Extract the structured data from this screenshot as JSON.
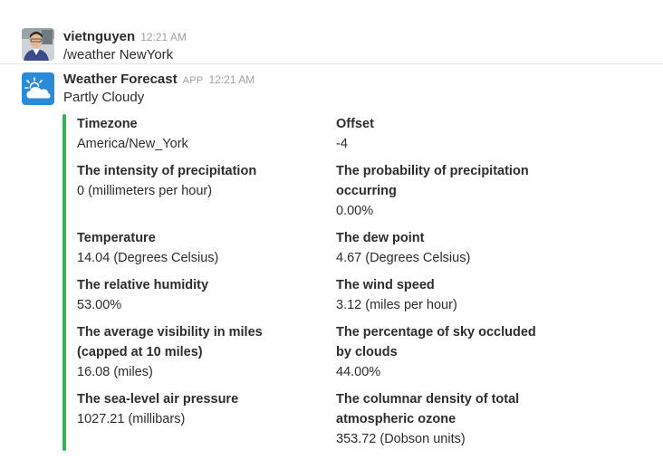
{
  "messages": {
    "user": {
      "name": "vietnguyen",
      "time": "12:21 AM",
      "text": "/weather NewYork"
    },
    "bot": {
      "name": "Weather Forecast",
      "badge": "APP",
      "time": "12:21 AM",
      "text": "Partly Cloudy",
      "icon": "partly-cloudy-icon",
      "accent_color": "#2eb55c",
      "avatar_color": "#2b8bd6"
    }
  },
  "fields": [
    {
      "title": "Timezone",
      "value": "America/New_York"
    },
    {
      "title": "Offset",
      "value": "-4"
    },
    {
      "title": "The intensity of precipitation",
      "value": "0 (millimeters per hour)"
    },
    {
      "title": "The probability of precipitation occurring",
      "value": "0.00%"
    },
    {
      "title": "Temperature",
      "value": "14.04 (Degrees Celsius)"
    },
    {
      "title": "The dew point",
      "value": "4.67 (Degrees Celsius)"
    },
    {
      "title": "The relative humidity",
      "value": "53.00%"
    },
    {
      "title": "The wind speed",
      "value": "3.12 (miles per hour)"
    },
    {
      "title": "The average visibility in miles (capped at 10 miles)",
      "value": "16.08 (miles)"
    },
    {
      "title": "The percentage of sky occluded by clouds",
      "value": "44.00%"
    },
    {
      "title": "The sea-level air pressure",
      "value": "1027.21 (millibars)"
    },
    {
      "title": "The columnar density of total atmospheric ozone",
      "value": "353.72 (Dobson units)"
    }
  ]
}
